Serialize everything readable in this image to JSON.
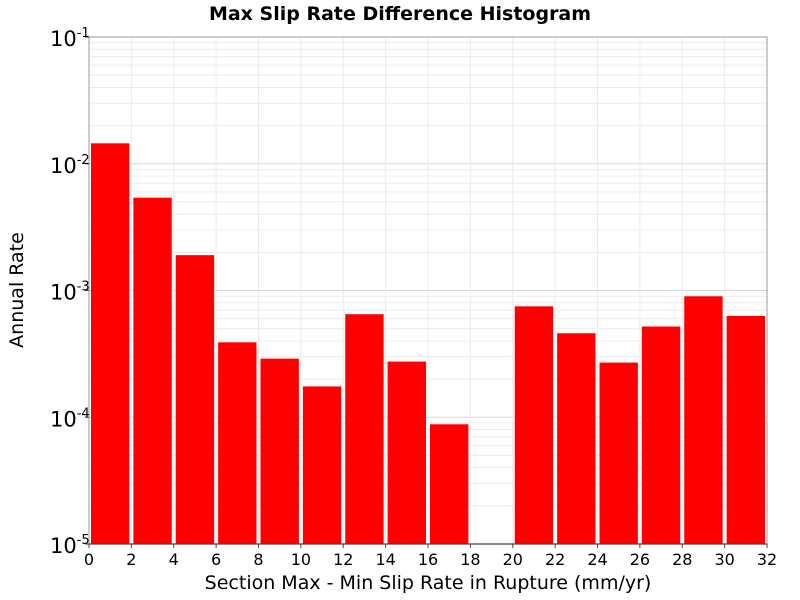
{
  "chart_data": {
    "type": "bar",
    "title": "Max Slip Rate Difference Histogram",
    "xlabel": "Section Max - Min Slip Rate in Rupture (mm/yr)",
    "ylabel": "Annual Rate",
    "xlim": [
      0,
      32
    ],
    "ylim": [
      1e-05,
      0.1
    ],
    "yscale": "log",
    "bin_width": 2,
    "bin_starts": [
      0,
      2,
      4,
      6,
      8,
      10,
      12,
      14,
      16,
      18,
      20,
      22,
      24,
      26,
      28,
      30
    ],
    "values": [
      0.0145,
      0.0054,
      0.0019,
      0.00039,
      0.00029,
      0.000175,
      0.00065,
      0.000275,
      8.8e-05,
      0,
      0.00075,
      0.00046,
      0.00027,
      0.00052,
      0.0009,
      0.00063
    ],
    "x_ticks": [
      "0",
      "2",
      "4",
      "6",
      "8",
      "10",
      "12",
      "14",
      "16",
      "18",
      "20",
      "22",
      "24",
      "26",
      "28",
      "30",
      "32"
    ],
    "y_ticks": [
      {
        "base": "10",
        "exp": "-5"
      },
      {
        "base": "10",
        "exp": "-4"
      },
      {
        "base": "10",
        "exp": "-3"
      },
      {
        "base": "10",
        "exp": "-2"
      },
      {
        "base": "10",
        "exp": "-1"
      }
    ],
    "grid": true,
    "bar_color": "#ff0000"
  }
}
